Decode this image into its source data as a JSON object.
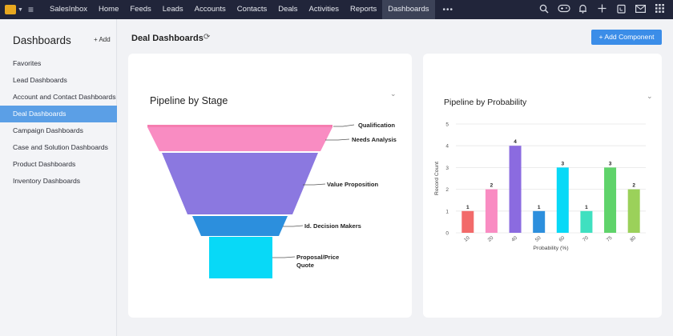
{
  "topbar": {
    "app_name": "SalesInbox",
    "nav": [
      "Home",
      "Feeds",
      "Leads",
      "Accounts",
      "Contacts",
      "Deals",
      "Activities",
      "Reports",
      "Dashboards"
    ],
    "active_nav": "Dashboards",
    "more_glyph": "•••",
    "icons": [
      "search-icon",
      "gamepad-icon",
      "bell-icon",
      "plus-icon",
      "calendar-icon",
      "mail-icon",
      "grid-icon"
    ]
  },
  "sidebar": {
    "title": "Dashboards",
    "add_label": "+ Add",
    "items": [
      "Favorites",
      "Lead Dashboards",
      "Account and Contact Dashboards",
      "Deal Dashboards",
      "Campaign Dashboards",
      "Case and Solution Dashboards",
      "Product Dashboards",
      "Inventory Dashboards"
    ],
    "active_item": "Deal Dashboards"
  },
  "header": {
    "title": "Deal Dashboards",
    "add_component_label": "+ Add Component"
  },
  "colors": {
    "topbar": "#21253a",
    "accent": "#3b8de8",
    "sidebar_active": "#5b9fe6"
  },
  "funnel": {
    "title": "Pipeline by Stage",
    "stages": [
      {
        "label": "Qualification",
        "color": "#f57eb0"
      },
      {
        "label": "Needs Analysis",
        "color": "#f98cc2"
      },
      {
        "label": "Value Proposition",
        "color": "#8b78e0"
      },
      {
        "label": "Id. Decision Makers",
        "color": "#2c8fdd"
      },
      {
        "label": "Proposal/Price Quote",
        "color": "#08d9f7"
      }
    ]
  },
  "chart_data": {
    "type": "bar",
    "title": "Pipeline by Probability",
    "xlabel": "Probability (%)",
    "ylabel": "Record Count",
    "categories": [
      "10",
      "20",
      "40",
      "50",
      "60",
      "70",
      "75",
      "80"
    ],
    "values": [
      1,
      2,
      4,
      1,
      3,
      1,
      3,
      2
    ],
    "colors": [
      "#f26a6a",
      "#f98cc2",
      "#8b6be0",
      "#2c8fdd",
      "#08d9f7",
      "#3fe0c0",
      "#5fd36a",
      "#9bd15a"
    ],
    "ylim": [
      0,
      5
    ],
    "yticks": [
      0,
      1,
      2,
      3,
      4,
      5
    ],
    "grid": true
  }
}
